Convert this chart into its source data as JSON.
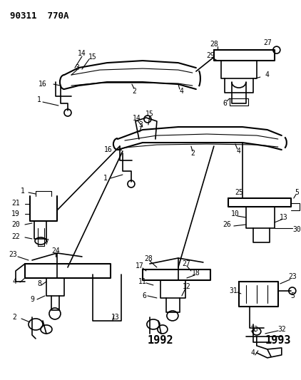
{
  "title": "90311  770A",
  "bg_color": "#ffffff",
  "line_color": "#000000",
  "title_fontsize": 9,
  "label_fontsize": 7,
  "year_1992_fontsize": 11,
  "year_1993_fontsize": 11,
  "fig_width": 4.22,
  "fig_height": 5.33,
  "dpi": 100
}
